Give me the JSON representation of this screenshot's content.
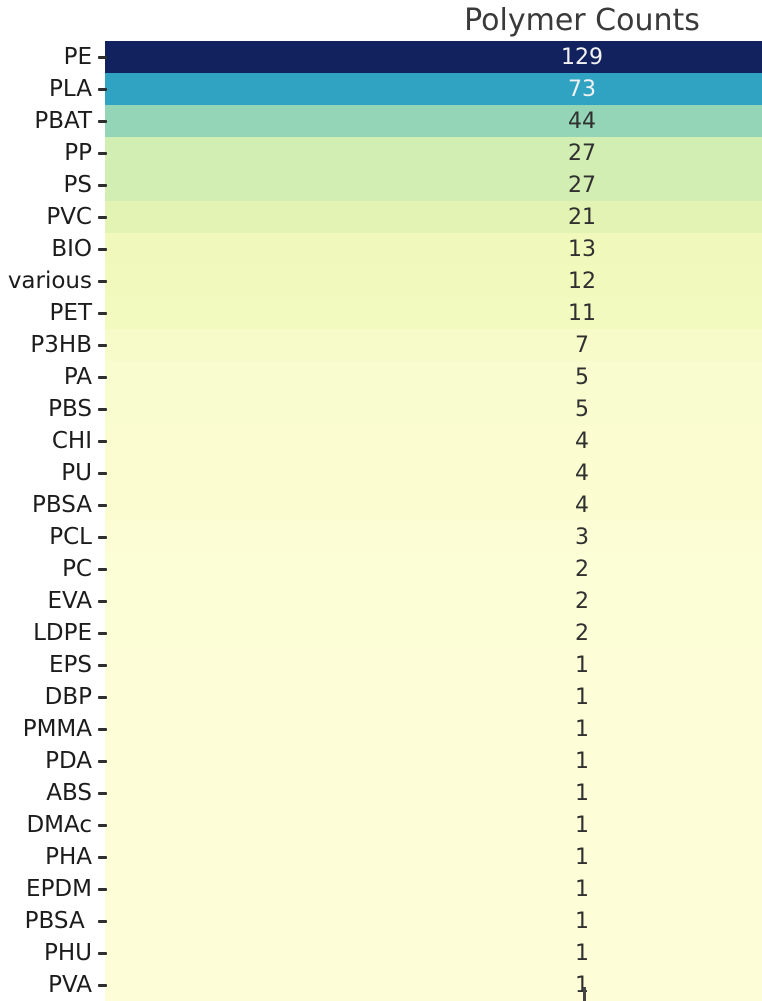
{
  "title": "Polymer Counts",
  "chart_data": {
    "type": "heatmap",
    "title": "Polymer Counts",
    "orientation": "single-column vertical heatmap, y categories with annotated counts",
    "colormap": "YlGnBu",
    "vmin": 1,
    "vmax": 129,
    "legend": "none (colorbar not visible)",
    "grid": false,
    "categories": [
      "PE",
      "PLA",
      "PBAT",
      "PP",
      "PS",
      "PVC",
      "BIO",
      "various",
      "PET",
      "P3HB",
      "PA",
      "PBS",
      "CHI",
      "PU",
      "PBSA",
      "PCL",
      "PC",
      "EVA",
      "LDPE",
      "EPS",
      "DBP",
      "PMMA",
      "PDA",
      "ABS",
      "DMAc",
      "PHA",
      "EPDM",
      "PBSA ",
      "PHU",
      "PVA"
    ],
    "values": [
      129,
      73,
      44,
      27,
      27,
      21,
      13,
      12,
      11,
      7,
      5,
      5,
      4,
      4,
      4,
      3,
      2,
      2,
      2,
      1,
      1,
      1,
      1,
      1,
      1,
      1,
      1,
      1,
      1,
      1
    ],
    "cell_colors": [
      "#12225e",
      "#31a3c2",
      "#93d5b6",
      "#d3eeb2",
      "#d3eeb2",
      "#e2f3b3",
      "#f0f9bb",
      "#f1f9bd",
      "#f3fac0",
      "#f7fbc9",
      "#f9fcce",
      "#f9fcce",
      "#fbfdd1",
      "#fbfdd1",
      "#fbfdd1",
      "#fcfdd4",
      "#fcfed6",
      "#fcfed6",
      "#fcfed6",
      "#fdfdd8",
      "#fdfdd8",
      "#fdfdd8",
      "#fdfdd8",
      "#fdfdd8",
      "#fdfdd8",
      "#fdfdd8",
      "#fdfdd8",
      "#fdfdd8",
      "#fdfdd8",
      "#fdfdd8"
    ],
    "value_text_colors": [
      "#f2f2f2",
      "#f2f2f2",
      "#303030",
      "#303030",
      "#303030",
      "#303030",
      "#303030",
      "#303030",
      "#303030",
      "#303030",
      "#303030",
      "#303030",
      "#303030",
      "#303030",
      "#303030",
      "#303030",
      "#303030",
      "#303030",
      "#303030",
      "#303030",
      "#303030",
      "#303030",
      "#303030",
      "#303030",
      "#303030",
      "#303030",
      "#303030",
      "#303030",
      "#303030",
      "#303030"
    ],
    "accent_colors": {
      "high_cell": "#12225e",
      "low_cell": "#fdfdd8",
      "tick": "#2e2e2e",
      "title_text": "#3a3a3a",
      "label_text": "#1c1c1c"
    }
  }
}
